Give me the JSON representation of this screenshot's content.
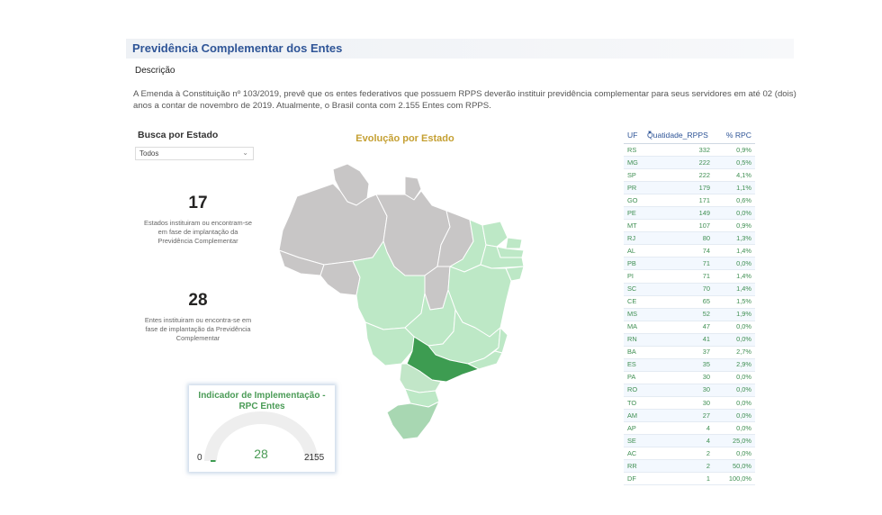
{
  "header": {
    "title": "Previdência Complementar dos Entes",
    "description_label": "Descrição",
    "description_text": "A Emenda à Constituição nº 103/2019, prevê que os entes federativos que possuem RPPS deverão instituir previdência complementar para seus servidores em até 02 (dois) anos  a contar de novembro de 2019. Atualmente, o Brasil conta com 2.155 Entes com RPPS."
  },
  "filter": {
    "label": "Busca por Estado",
    "selected": "Todos"
  },
  "kpis": [
    {
      "value": "17",
      "caption": "Estados instituiram ou encontram-se em fase de implantação da Previdência Complementar"
    },
    {
      "value": "28",
      "caption": "Entes instituiram ou encontra-se em fase de implantação da Previdência Complementar"
    }
  ],
  "map": {
    "title": "Evolução por Estado"
  },
  "gauge": {
    "title": "Indicador de Implementação - RPC Entes",
    "min": "0",
    "max": "2155",
    "value": "28",
    "fraction": 0.013
  },
  "colors": {
    "title_blue": "#2f5597",
    "map_title_gold": "#c5a033",
    "green_text": "#3f8f52",
    "map_light": "#bde8c6",
    "map_dark": "#3d9c51",
    "map_grey": "#c8c6c6"
  },
  "table": {
    "columns": [
      "UF",
      "Quatidade_RPPS",
      "% RPC"
    ],
    "sort_icon": "sort-descending-icon",
    "rows": [
      [
        "RS",
        "332",
        "0,9%"
      ],
      [
        "MG",
        "222",
        "0,5%"
      ],
      [
        "SP",
        "222",
        "4,1%"
      ],
      [
        "PR",
        "179",
        "1,1%"
      ],
      [
        "GO",
        "171",
        "0,6%"
      ],
      [
        "PE",
        "149",
        "0,0%"
      ],
      [
        "MT",
        "107",
        "0,9%"
      ],
      [
        "RJ",
        "80",
        "1,3%"
      ],
      [
        "AL",
        "74",
        "1,4%"
      ],
      [
        "PB",
        "71",
        "0,0%"
      ],
      [
        "PI",
        "71",
        "1,4%"
      ],
      [
        "SC",
        "70",
        "1,4%"
      ],
      [
        "CE",
        "65",
        "1,5%"
      ],
      [
        "MS",
        "52",
        "1,9%"
      ],
      [
        "MA",
        "47",
        "0,0%"
      ],
      [
        "RN",
        "41",
        "0,0%"
      ],
      [
        "BA",
        "37",
        "2,7%"
      ],
      [
        "ES",
        "35",
        "2,9%"
      ],
      [
        "PA",
        "30",
        "0,0%"
      ],
      [
        "RO",
        "30",
        "0,0%"
      ],
      [
        "TO",
        "30",
        "0,0%"
      ],
      [
        "AM",
        "27",
        "0,0%"
      ],
      [
        "AP",
        "4",
        "0,0%"
      ],
      [
        "SE",
        "4",
        "25,0%"
      ],
      [
        "AC",
        "2",
        "0,0%"
      ],
      [
        "RR",
        "2",
        "50,0%"
      ],
      [
        "DF",
        "1",
        "100,0%"
      ]
    ]
  }
}
